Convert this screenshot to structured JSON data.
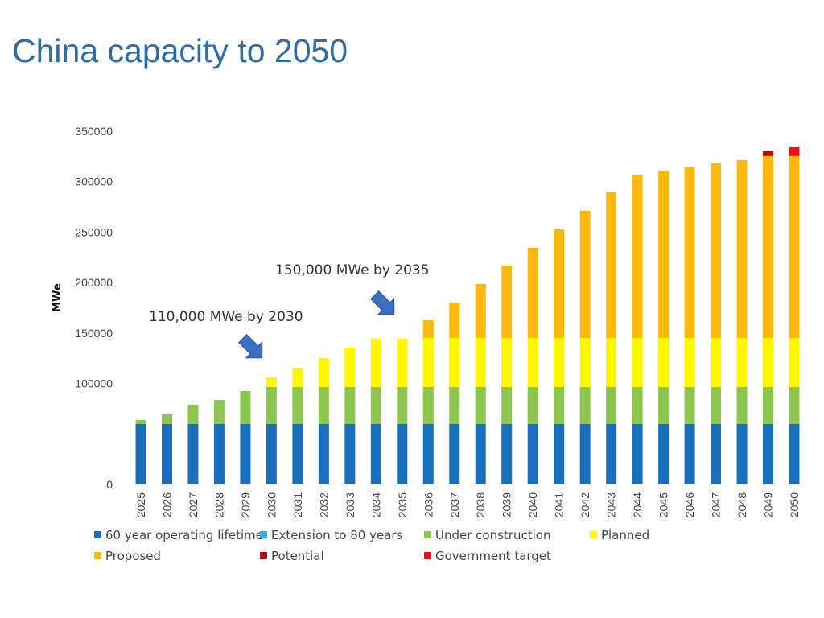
{
  "title": "China capacity to 2050",
  "chart_data": {
    "type": "bar",
    "stacked": true,
    "title": "China capacity to 2050",
    "xlabel": "",
    "ylabel": "MWe",
    "ylim": [
      0,
      350000
    ],
    "yticks": [
      {
        "value": 0,
        "label": "0"
      },
      {
        "value": 100000,
        "label": "100000"
      },
      {
        "value": 150000,
        "label": "150000"
      },
      {
        "value": 200000,
        "label": "200000"
      },
      {
        "value": 250000,
        "label": "250000"
      },
      {
        "value": 300000,
        "label": "300000"
      },
      {
        "value": 350000,
        "label": "350000"
      }
    ],
    "grid": false,
    "legend_position": "bottom",
    "categories": [
      "2025",
      "2026",
      "2027",
      "2028",
      "2029",
      "2030",
      "2031",
      "2032",
      "2033",
      "2034",
      "2035",
      "2036",
      "2037",
      "2038",
      "2039",
      "2040",
      "2041",
      "2042",
      "2043",
      "2044",
      "2045",
      "2046",
      "2047",
      "2048",
      "2049",
      "2050"
    ],
    "series": [
      {
        "name": "60 year operating lifetime",
        "color": "#1a6fbd",
        "values": [
          60000,
          60000,
          60000,
          60000,
          60000,
          60000,
          60000,
          60000,
          60000,
          60000,
          60000,
          60000,
          60000,
          60000,
          60000,
          60000,
          60000,
          60000,
          60000,
          60000,
          60000,
          60000,
          60000,
          60000,
          60000,
          60000
        ]
      },
      {
        "name": "Extension to 80 years",
        "color": "#2bb0e8",
        "values": [
          0,
          0,
          0,
          0,
          0,
          0,
          0,
          0,
          0,
          0,
          0,
          0,
          0,
          0,
          0,
          0,
          0,
          0,
          0,
          0,
          0,
          0,
          0,
          0,
          0,
          0
        ]
      },
      {
        "name": "Under construction",
        "color": "#8dc64f",
        "values": [
          3800,
          9400,
          19000,
          23700,
          32500,
          36500,
          36500,
          36500,
          36500,
          36500,
          36500,
          36500,
          36500,
          36500,
          36500,
          36500,
          36500,
          36500,
          36500,
          36500,
          36500,
          36500,
          36500,
          36500,
          36500,
          36500
        ]
      },
      {
        "name": "Planned",
        "color": "#fdf600",
        "values": [
          0,
          0,
          0,
          0,
          0,
          9500,
          19100,
          28700,
          39100,
          48000,
          48000,
          48600,
          48600,
          48600,
          48600,
          48600,
          48600,
          48600,
          48600,
          48600,
          48600,
          48600,
          48600,
          48600,
          48600,
          48600
        ]
      },
      {
        "name": "Proposed",
        "color": "#fbb90f",
        "values": [
          0,
          0,
          0,
          0,
          0,
          0,
          0,
          0,
          0,
          0,
          0,
          17600,
          35100,
          53500,
          71800,
          89300,
          107700,
          126000,
          144400,
          161900,
          165900,
          169100,
          173100,
          176300,
          180300,
          180300
        ]
      },
      {
        "name": "Potential",
        "color": "#b30f0f",
        "values": [
          0,
          0,
          0,
          0,
          0,
          0,
          0,
          0,
          0,
          0,
          0,
          0,
          0,
          0,
          0,
          0,
          0,
          0,
          0,
          0,
          0,
          0,
          0,
          0,
          4700,
          0
        ]
      },
      {
        "name": "Government target",
        "color": "#e8111a",
        "values": [
          0,
          0,
          0,
          0,
          0,
          0,
          0,
          0,
          0,
          0,
          0,
          0,
          0,
          0,
          0,
          0,
          0,
          0,
          0,
          0,
          0,
          0,
          0,
          0,
          0,
          8700
        ]
      }
    ],
    "annotations": [
      {
        "text": "110,000 MWe by 2030",
        "points_to": "2030"
      },
      {
        "text": "150,000 MWe by 2035",
        "points_to": "2035"
      }
    ],
    "arrow_color": "#3a6fc4"
  }
}
